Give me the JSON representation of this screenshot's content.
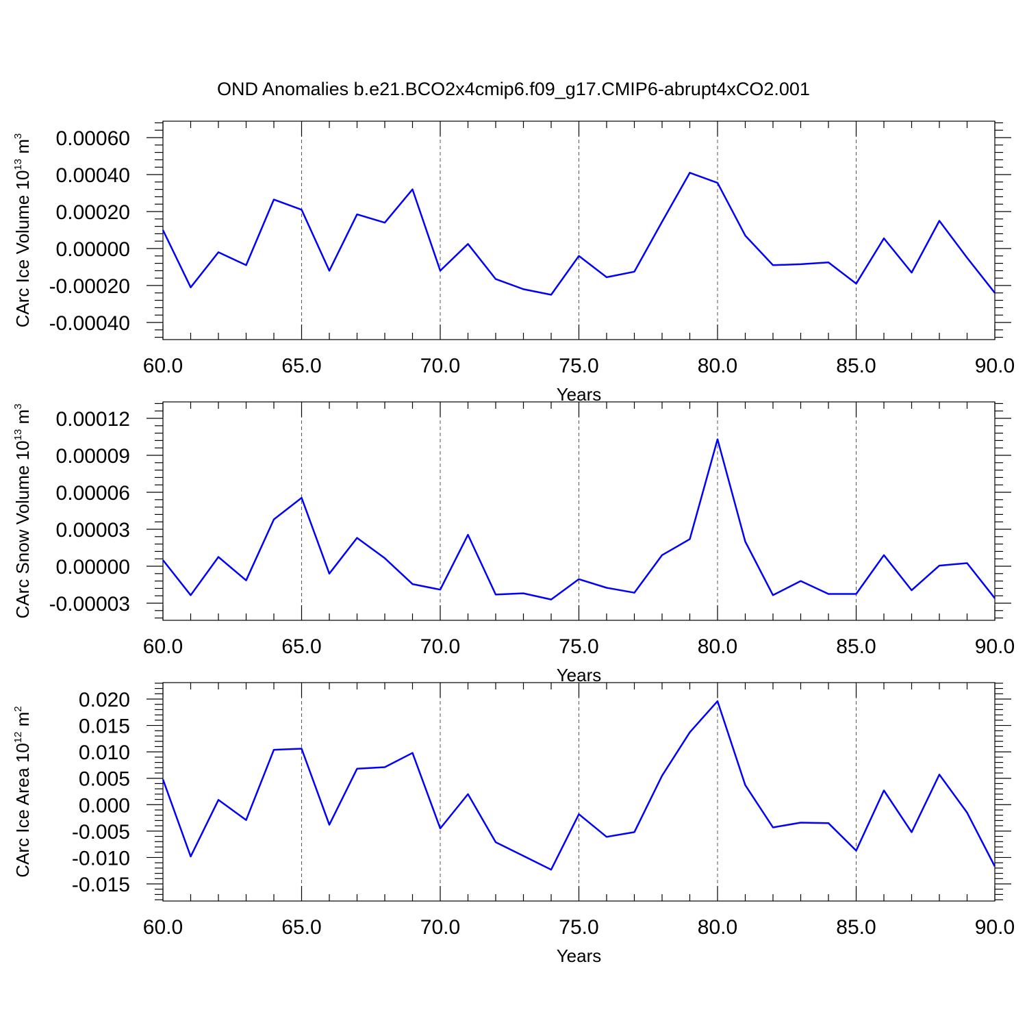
{
  "title": "OND Anomalies b.e21.BCO2x4cmip6.f09_g17.CMIP6-abrupt4xCO2.001",
  "line_color": "#0000ff",
  "chart_data": [
    {
      "type": "line",
      "xlabel": "Years",
      "ylabel": {
        "base": "CArc Ice Volume 10",
        "exp": "13",
        "unit": " m",
        "unit_exp": "3"
      },
      "xlim": [
        60,
        90
      ],
      "ylim": [
        -0.0004,
        0.0006
      ],
      "xticks": [
        60,
        65,
        70,
        75,
        80,
        85,
        90
      ],
      "xtick_labels": [
        "60.0",
        "65.0",
        "70.0",
        "75.0",
        "80.0",
        "85.0",
        "90.0"
      ],
      "yticks": [
        -0.0004,
        -0.0002,
        0,
        0.0002,
        0.0004,
        0.0006
      ],
      "ytick_labels": [
        "-0.00040",
        "-0.00020",
        "0.00000",
        "0.00020",
        "0.00040",
        "0.00060"
      ],
      "x": [
        60,
        61,
        62,
        63,
        64,
        65,
        66,
        67,
        68,
        69,
        70,
        71,
        72,
        73,
        74,
        75,
        76,
        77,
        78,
        79,
        80,
        81,
        82,
        83,
        84,
        85,
        86,
        87,
        88,
        89,
        90
      ],
      "y": [
        0.0001,
        -0.00021,
        -2e-05,
        -9e-05,
        0.000265,
        0.00021,
        -0.00012,
        0.000185,
        0.00014,
        0.00032,
        -0.00012,
        2.5e-05,
        -0.000165,
        -0.00022,
        -0.00025,
        -4e-05,
        -0.000155,
        -0.000125,
        0.000145,
        0.00041,
        0.000355,
        7e-05,
        -9e-05,
        -8.5e-05,
        -7.5e-05,
        -0.00019,
        5.5e-05,
        -0.00013,
        0.00015,
        -5e-05,
        -0.00024
      ]
    },
    {
      "type": "line",
      "xlabel": "Years",
      "ylabel": {
        "base": "CArc Snow Volume 10",
        "exp": "13",
        "unit": " m",
        "unit_exp": "3"
      },
      "xlim": [
        60,
        90
      ],
      "ylim": [
        -3e-05,
        0.00012
      ],
      "xticks": [
        60,
        65,
        70,
        75,
        80,
        85,
        90
      ],
      "xtick_labels": [
        "60.0",
        "65.0",
        "70.0",
        "75.0",
        "80.0",
        "85.0",
        "90.0"
      ],
      "yticks": [
        -3e-05,
        0,
        3e-05,
        6e-05,
        9e-05,
        0.00012
      ],
      "ytick_labels": [
        "-0.00003",
        "0.00000",
        "0.00003",
        "0.00006",
        "0.00009",
        "0.00012"
      ],
      "x": [
        60,
        61,
        62,
        63,
        64,
        65,
        66,
        67,
        68,
        69,
        70,
        71,
        72,
        73,
        74,
        75,
        76,
        77,
        78,
        79,
        80,
        81,
        82,
        83,
        84,
        85,
        86,
        87,
        88,
        89,
        90
      ],
      "y": [
        5e-06,
        -2.35e-05,
        7.5e-06,
        -1.15e-05,
        3.8e-05,
        5.55e-05,
        -6e-06,
        2.3e-05,
        6.5e-06,
        -1.45e-05,
        -1.9e-05,
        2.55e-05,
        -2.3e-05,
        -2.2e-05,
        -2.7e-05,
        -1.05e-05,
        -1.75e-05,
        -2.15e-05,
        9e-06,
        2.2e-05,
        0.000103,
        2e-05,
        -2.35e-05,
        -1.2e-05,
        -2.25e-05,
        -2.25e-05,
        9e-06,
        -1.95e-05,
        5e-07,
        2.5e-06,
        -2.6e-05
      ]
    },
    {
      "type": "line",
      "xlabel": "Years",
      "ylabel": {
        "base": "CArc Ice Area 10",
        "exp": "12",
        "unit": " m",
        "unit_exp": "2"
      },
      "xlim": [
        60,
        90
      ],
      "ylim": [
        -0.015,
        0.02
      ],
      "xticks": [
        60,
        65,
        70,
        75,
        80,
        85,
        90
      ],
      "xtick_labels": [
        "60.0",
        "65.0",
        "70.0",
        "75.0",
        "80.0",
        "85.0",
        "90.0"
      ],
      "yticks": [
        -0.015,
        -0.01,
        -0.005,
        0,
        0.005,
        0.01,
        0.015,
        0.02
      ],
      "ytick_labels": [
        "-0.015",
        "-0.010",
        "-0.005",
        "0.000",
        "0.005",
        "0.010",
        "0.015",
        "0.020"
      ],
      "x": [
        60,
        61,
        62,
        63,
        64,
        65,
        66,
        67,
        68,
        69,
        70,
        71,
        72,
        73,
        74,
        75,
        76,
        77,
        78,
        79,
        80,
        81,
        82,
        83,
        84,
        85,
        86,
        87,
        88,
        89,
        90
      ],
      "y": [
        0.0048,
        -0.0098,
        0.0009,
        -0.0029,
        0.0104,
        0.0106,
        -0.0038,
        0.0068,
        0.0071,
        0.0098,
        -0.0045,
        0.002,
        -0.0071,
        -0.0097,
        -0.0123,
        -0.0018,
        -0.0061,
        -0.0052,
        0.0055,
        0.0137,
        0.0196,
        0.0037,
        -0.0043,
        -0.0034,
        -0.0035,
        -0.0087,
        0.0027,
        -0.0052,
        0.0057,
        -0.0015,
        -0.0117
      ]
    }
  ]
}
